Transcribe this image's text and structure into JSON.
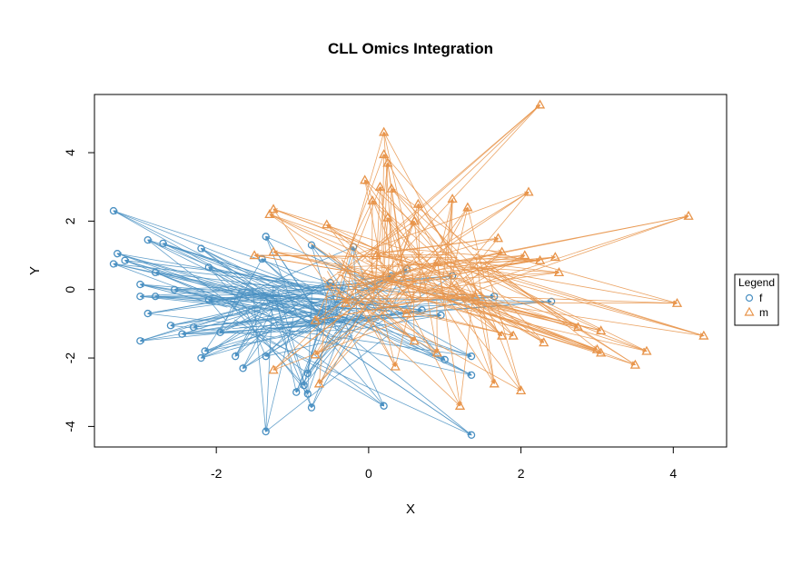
{
  "chart_data": {
    "type": "scatter",
    "title": "CLL Omics Integration",
    "xlabel": "X",
    "ylabel": "Y",
    "xlim": [
      -3.6,
      4.7
    ],
    "ylim": [
      -4.6,
      5.7
    ],
    "x_ticks": [
      -2,
      0,
      2,
      4
    ],
    "y_ticks": [
      -4,
      -2,
      0,
      2,
      4
    ],
    "x_tick_labels": [
      "-2",
      "0",
      "2",
      "4"
    ],
    "y_tick_labels": [
      "-4",
      "-2",
      "0",
      "2",
      "4"
    ],
    "grid": false,
    "legend": {
      "title": "Legend",
      "placement": "right",
      "entries": [
        {
          "label": "f",
          "symbol": "circle",
          "color": "#4a90c2"
        },
        {
          "label": "m",
          "symbol": "triangle",
          "color": "#e8944a"
        }
      ]
    },
    "arrows": true,
    "series": [
      {
        "name": "f",
        "color": "#4a90c2",
        "marker": "circle",
        "points": [
          {
            "x": -3.35,
            "y": 2.3
          },
          {
            "x": -3.3,
            "y": 1.05
          },
          {
            "x": -3.35,
            "y": 0.75
          },
          {
            "x": -3.2,
            "y": 0.85
          },
          {
            "x": -2.9,
            "y": 1.45
          },
          {
            "x": -2.7,
            "y": 1.35
          },
          {
            "x": -2.2,
            "y": 1.2
          },
          {
            "x": -2.1,
            "y": 0.65
          },
          {
            "x": -2.8,
            "y": 0.5
          },
          {
            "x": -3.0,
            "y": 0.15
          },
          {
            "x": -3.0,
            "y": -0.2
          },
          {
            "x": -2.8,
            "y": -0.2
          },
          {
            "x": -2.55,
            "y": 0.0
          },
          {
            "x": -2.9,
            "y": -0.7
          },
          {
            "x": -2.1,
            "y": -0.3
          },
          {
            "x": -2.6,
            "y": -1.05
          },
          {
            "x": -2.45,
            "y": -1.3
          },
          {
            "x": -2.3,
            "y": -1.1
          },
          {
            "x": -3.0,
            "y": -1.5
          },
          {
            "x": -2.15,
            "y": -1.8
          },
          {
            "x": -2.2,
            "y": -2.0
          },
          {
            "x": -1.95,
            "y": -1.25
          },
          {
            "x": -1.75,
            "y": -1.95
          },
          {
            "x": -1.65,
            "y": -2.3
          },
          {
            "x": -1.35,
            "y": -1.95
          },
          {
            "x": -1.35,
            "y": 1.55
          },
          {
            "x": -1.4,
            "y": 0.9
          },
          {
            "x": -1.35,
            "y": -4.15
          },
          {
            "x": -0.95,
            "y": -3.0
          },
          {
            "x": -0.85,
            "y": -2.8
          },
          {
            "x": -0.8,
            "y": -3.05
          },
          {
            "x": -0.75,
            "y": -3.45
          },
          {
            "x": -0.8,
            "y": -2.45
          },
          {
            "x": 0.2,
            "y": -3.4
          },
          {
            "x": 1.35,
            "y": -4.25
          },
          {
            "x": 1.35,
            "y": -2.5
          },
          {
            "x": 1.35,
            "y": -1.95
          },
          {
            "x": 1.0,
            "y": -2.05
          },
          {
            "x": 2.4,
            "y": -0.35
          },
          {
            "x": 1.65,
            "y": -0.2
          },
          {
            "x": -0.75,
            "y": 1.3
          },
          {
            "x": -0.2,
            "y": 1.25
          },
          {
            "x": 0.5,
            "y": 0.6
          },
          {
            "x": 0.3,
            "y": 0.4
          },
          {
            "x": 0.7,
            "y": -0.6
          },
          {
            "x": 0.95,
            "y": -0.75
          },
          {
            "x": 1.1,
            "y": 0.4
          },
          {
            "x": -0.5,
            "y": 0.2
          }
        ]
      },
      {
        "name": "m",
        "color": "#e8944a",
        "marker": "triangle",
        "points": [
          {
            "x": 2.25,
            "y": 5.4
          },
          {
            "x": 0.2,
            "y": 4.6
          },
          {
            "x": 0.2,
            "y": 3.95
          },
          {
            "x": 0.25,
            "y": 3.7
          },
          {
            "x": -0.05,
            "y": 3.2
          },
          {
            "x": 0.15,
            "y": 3.0
          },
          {
            "x": 0.3,
            "y": 2.95
          },
          {
            "x": 0.05,
            "y": 2.6
          },
          {
            "x": 2.1,
            "y": 2.85
          },
          {
            "x": 4.2,
            "y": 2.15
          },
          {
            "x": 1.1,
            "y": 2.65
          },
          {
            "x": 1.3,
            "y": 2.4
          },
          {
            "x": 0.65,
            "y": 2.5
          },
          {
            "x": 0.6,
            "y": 2.0
          },
          {
            "x": 0.25,
            "y": 2.1
          },
          {
            "x": -1.25,
            "y": 2.35
          },
          {
            "x": -1.3,
            "y": 2.2
          },
          {
            "x": -0.55,
            "y": 1.9
          },
          {
            "x": -1.5,
            "y": 1.0
          },
          {
            "x": -1.25,
            "y": 1.1
          },
          {
            "x": 1.7,
            "y": 1.5
          },
          {
            "x": 1.75,
            "y": 1.1
          },
          {
            "x": 2.05,
            "y": 1.0
          },
          {
            "x": 2.45,
            "y": 0.95
          },
          {
            "x": 2.5,
            "y": 0.5
          },
          {
            "x": 2.25,
            "y": 0.85
          },
          {
            "x": 4.05,
            "y": -0.4
          },
          {
            "x": 4.4,
            "y": -1.35
          },
          {
            "x": 3.65,
            "y": -1.8
          },
          {
            "x": 3.5,
            "y": -2.2
          },
          {
            "x": 3.0,
            "y": -1.75
          },
          {
            "x": 3.05,
            "y": -1.85
          },
          {
            "x": 3.05,
            "y": -1.2
          },
          {
            "x": 2.75,
            "y": -1.1
          },
          {
            "x": 2.3,
            "y": -1.55
          },
          {
            "x": 1.9,
            "y": -1.35
          },
          {
            "x": 1.75,
            "y": -1.35
          },
          {
            "x": 2.0,
            "y": -2.95
          },
          {
            "x": 1.65,
            "y": -2.75
          },
          {
            "x": 1.2,
            "y": -3.4
          },
          {
            "x": 0.35,
            "y": -2.25
          },
          {
            "x": -0.65,
            "y": -2.75
          },
          {
            "x": -0.7,
            "y": -1.9
          },
          {
            "x": -1.25,
            "y": -2.35
          },
          {
            "x": 0.6,
            "y": -1.5
          },
          {
            "x": 0.9,
            "y": -1.85
          },
          {
            "x": -0.3,
            "y": -0.4
          },
          {
            "x": -0.7,
            "y": -0.9
          },
          {
            "x": 0.1,
            "y": 1.0
          },
          {
            "x": 0.9,
            "y": 0.8
          },
          {
            "x": 1.4,
            "y": -0.2
          },
          {
            "x": 0.5,
            "y": -0.7
          }
        ]
      }
    ]
  }
}
